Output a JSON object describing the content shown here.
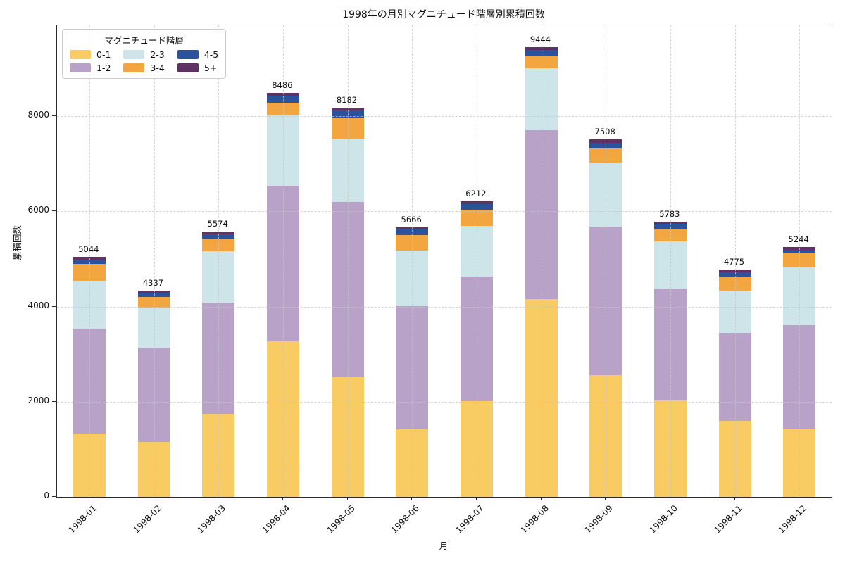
{
  "title": "1998年の月別マグニチュード階層別累積回数",
  "axes": {
    "ylabel": "累積回数",
    "xlabel": "月",
    "yticks": [
      0,
      2000,
      4000,
      6000,
      8000
    ],
    "ymax": 9908
  },
  "legend": {
    "title": "マグニチュード階層",
    "position": "upper left"
  },
  "chart_data": {
    "type": "bar",
    "stacked": true,
    "title": "1998年の月別マグニチュード階層別累積回数",
    "xlabel": "月",
    "ylabel": "累積回数",
    "ylim": [
      0,
      9908
    ],
    "grid": true,
    "legend_position": "upper left",
    "categories": [
      "1998-01",
      "1998-02",
      "1998-03",
      "1998-04",
      "1998-05",
      "1998-06",
      "1998-07",
      "1998-08",
      "1998-09",
      "1998-10",
      "1998-11",
      "1998-12"
    ],
    "totals": [
      5044,
      4337,
      5574,
      8486,
      8182,
      5666,
      6212,
      9444,
      7508,
      5783,
      4775,
      5244
    ],
    "series": [
      {
        "name": "0-1",
        "color": "#f8cc63",
        "values": [
          1335,
          1147,
          1750,
          3264,
          2520,
          1415,
          2015,
          4160,
          2555,
          2025,
          1595,
          1435
        ]
      },
      {
        "name": "1-2",
        "color": "#b9a2c8",
        "values": [
          2200,
          1984,
          2330,
          3278,
          3670,
          2600,
          2615,
          3550,
          3130,
          2350,
          1850,
          2180
        ]
      },
      {
        "name": "2-3",
        "color": "#cde5e8",
        "values": [
          1000,
          841,
          1085,
          1478,
          1335,
          1165,
          1065,
          1290,
          1335,
          1000,
          892,
          1213
        ]
      },
      {
        "name": "3-4",
        "color": "#f3a63f",
        "values": [
          355,
          226,
          260,
          262,
          435,
          322,
          335,
          252,
          307,
          247,
          287,
          282
        ]
      },
      {
        "name": "4-5",
        "color": "#2b539b",
        "values": [
          95,
          95,
          90,
          148,
          163,
          119,
          123,
          133,
          107,
          112,
          96,
          74
        ]
      },
      {
        "name": "5+",
        "color": "#5f3262",
        "values": [
          59,
          44,
          59,
          56,
          59,
          45,
          59,
          59,
          74,
          49,
          55,
          60
        ]
      }
    ]
  }
}
